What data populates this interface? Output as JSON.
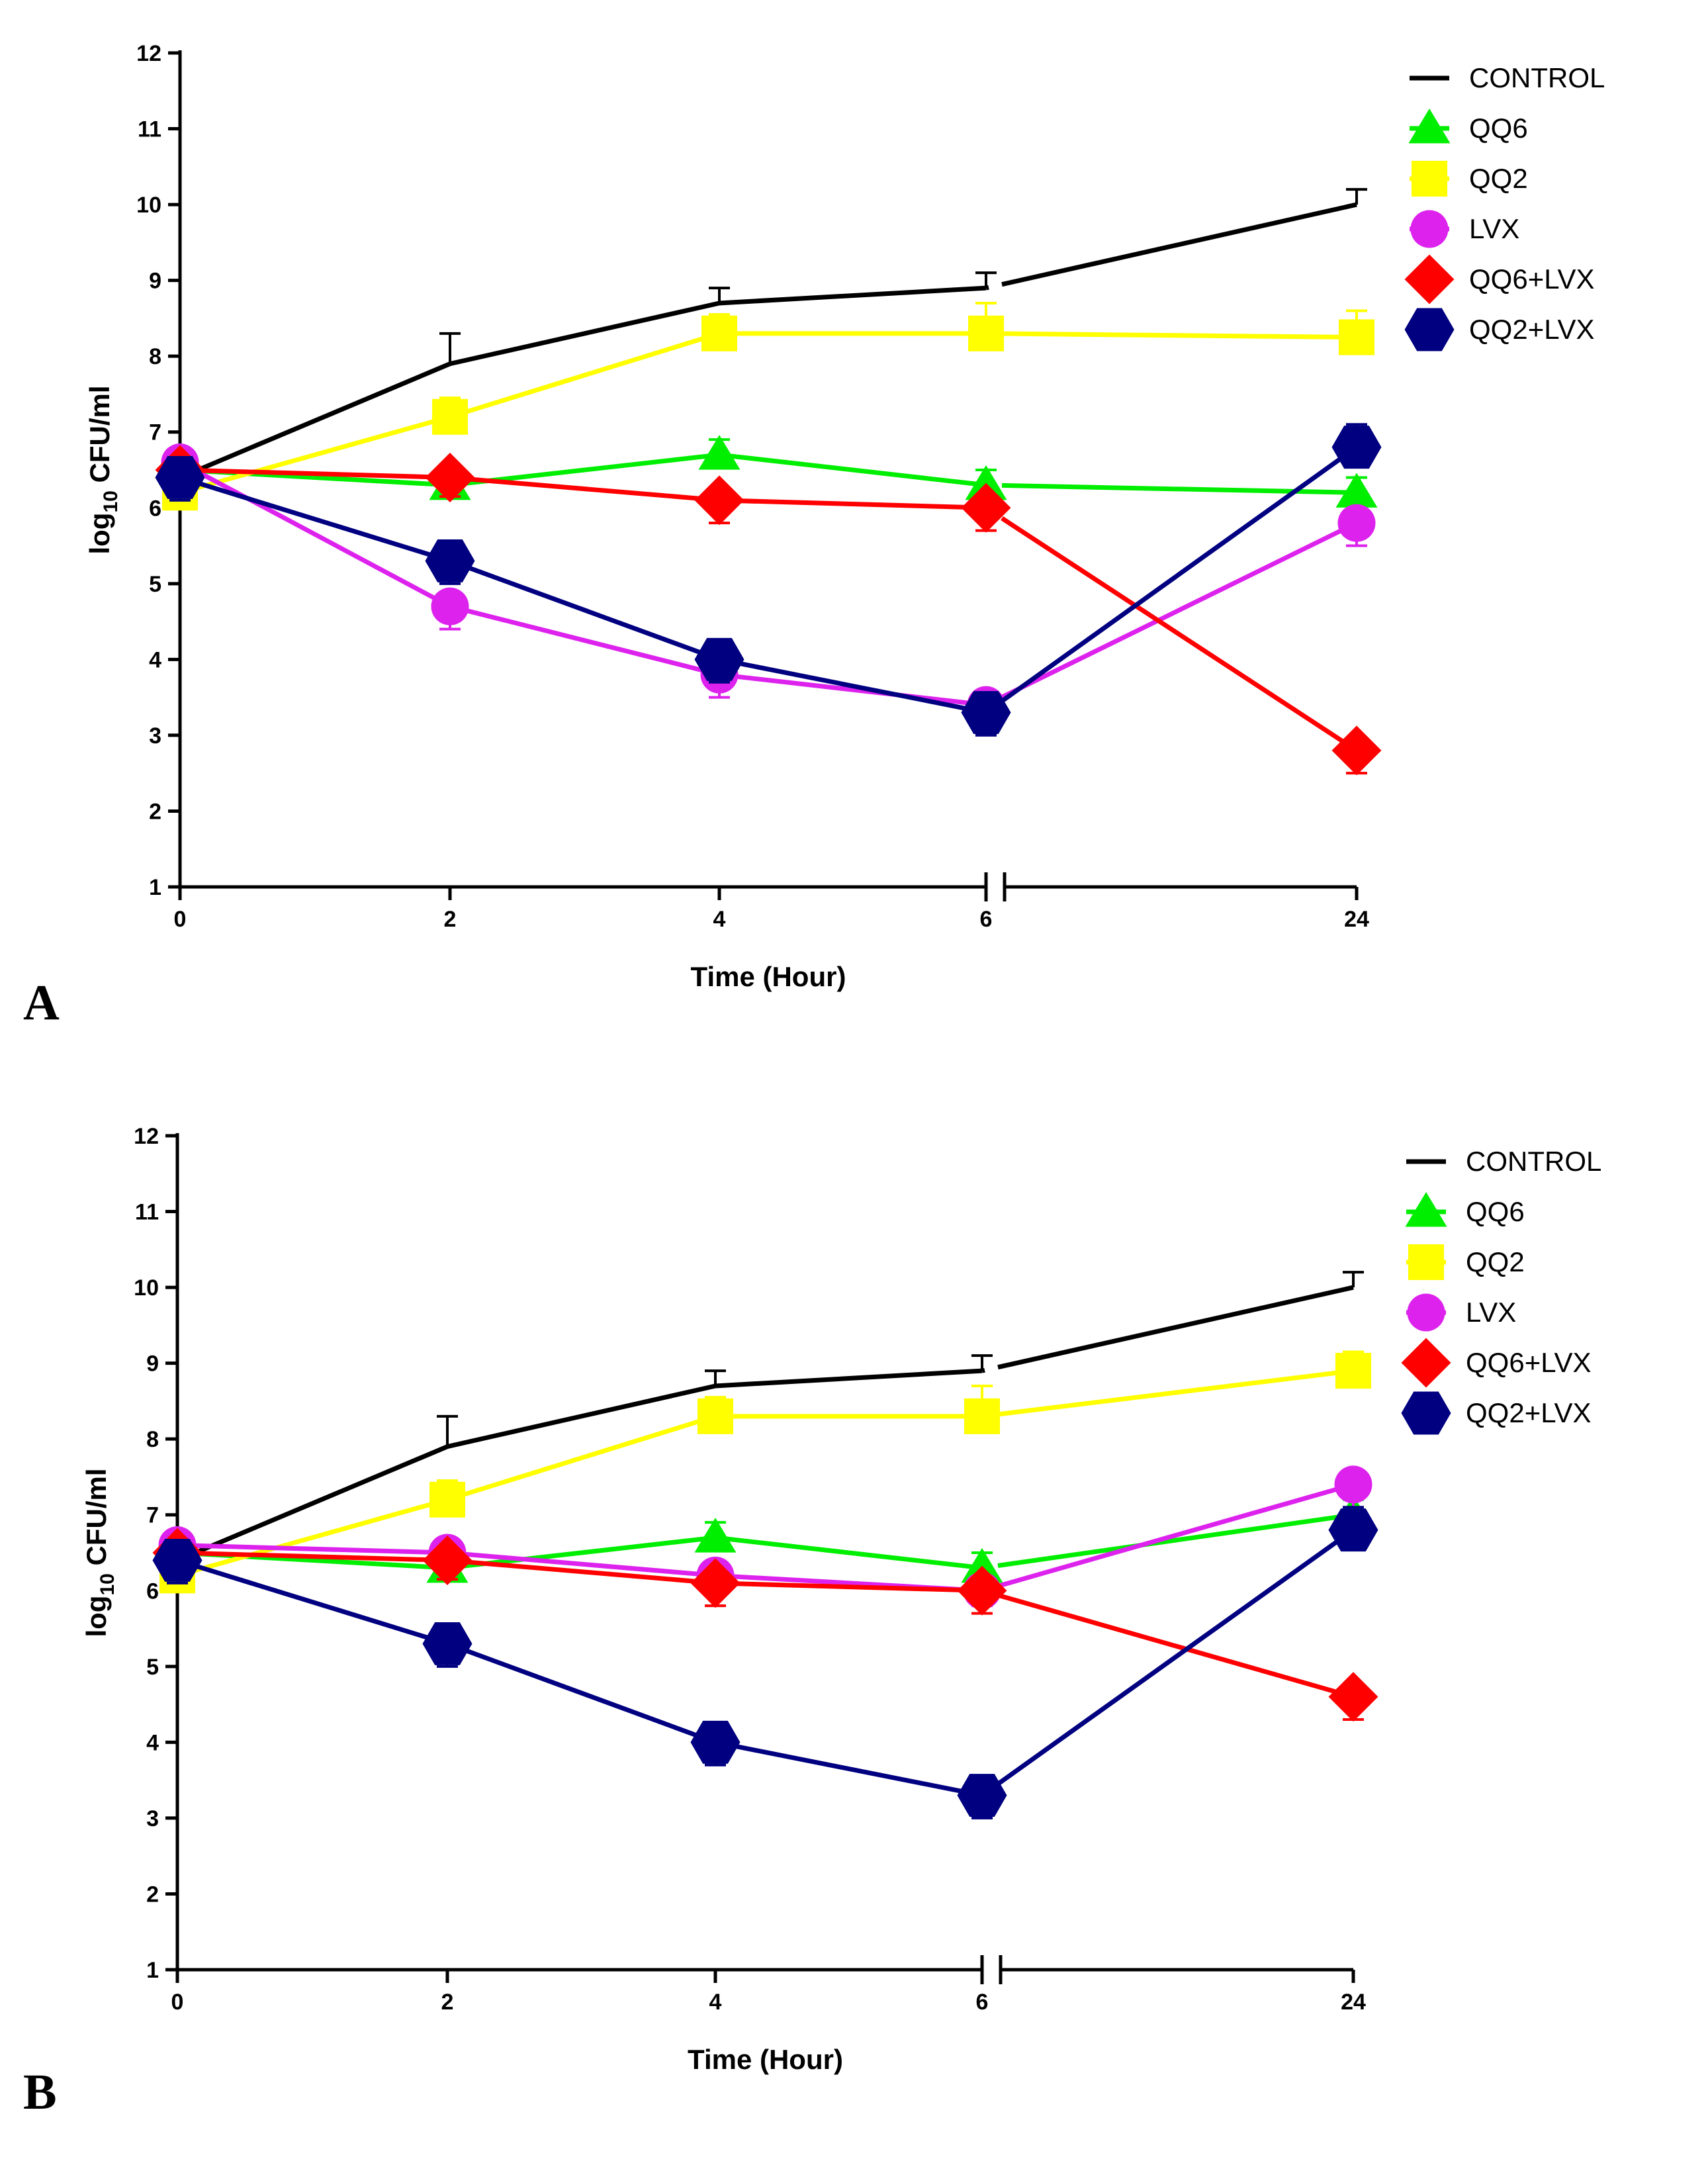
{
  "chart_data": [
    {
      "type": "line",
      "panel_label": "A",
      "xlabel": "Time (Hour)",
      "ylabel": "log10 CFU/ml",
      "ylabel_parts": [
        "log",
        "10",
        " CFU/ml"
      ],
      "x": [
        "0",
        "2",
        "4",
        "6",
        "24"
      ],
      "yticks": [
        "1",
        "2",
        "3",
        "4",
        "5",
        "6",
        "7",
        "8",
        "9",
        "10",
        "11",
        "12"
      ],
      "ylim": [
        1,
        12
      ],
      "axis_break_after": "6",
      "legend_position": "top-right",
      "series": [
        {
          "name": "CONTROL",
          "color": "#000000",
          "marker": "none",
          "values": [
            6.4,
            7.9,
            8.7,
            8.9,
            10.0
          ],
          "errors": [
            0.2,
            0.4,
            0.2,
            0.2,
            0.2
          ]
        },
        {
          "name": "QQ6",
          "color": "#00ee00",
          "marker": "triangle",
          "values": [
            6.5,
            6.3,
            6.7,
            6.3,
            6.2
          ],
          "errors": [
            0.2,
            0.2,
            0.2,
            0.2,
            0.2
          ]
        },
        {
          "name": "QQ2",
          "color": "#ffff00",
          "marker": "square",
          "values": [
            6.2,
            7.2,
            8.3,
            8.3,
            8.25
          ],
          "errors": [
            0.2,
            0.25,
            0.25,
            0.4,
            0.35
          ]
        },
        {
          "name": "LVX",
          "color": "#dd22ee",
          "marker": "circle",
          "values": [
            6.6,
            4.7,
            3.8,
            3.4,
            5.8
          ],
          "errors": [
            0.2,
            0.3,
            0.3,
            0.2,
            0.3
          ]
        },
        {
          "name": "QQ6+LVX",
          "color": "#ff0000",
          "marker": "diamond",
          "values": [
            6.5,
            6.4,
            6.1,
            6.0,
            2.8
          ],
          "errors": [
            0.2,
            0.25,
            0.3,
            0.3,
            0.3
          ]
        },
        {
          "name": "QQ2+LVX",
          "color": "#000080",
          "marker": "hexagon",
          "values": [
            6.4,
            5.3,
            4.0,
            3.3,
            6.8
          ],
          "errors": [
            0.3,
            0.3,
            0.3,
            0.3,
            0.3
          ]
        }
      ]
    },
    {
      "type": "line",
      "panel_label": "B",
      "xlabel": "Time (Hour)",
      "ylabel": "log10 CFU/ml",
      "ylabel_parts": [
        "log",
        "10",
        " CFU/ml"
      ],
      "x": [
        "0",
        "2",
        "4",
        "6",
        "24"
      ],
      "yticks": [
        "1",
        "2",
        "3",
        "4",
        "5",
        "6",
        "7",
        "8",
        "9",
        "10",
        "11",
        "12"
      ],
      "ylim": [
        1,
        12
      ],
      "axis_break_after": "6",
      "legend_position": "top-right",
      "series": [
        {
          "name": "CONTROL",
          "color": "#000000",
          "marker": "none",
          "values": [
            6.4,
            7.9,
            8.7,
            8.9,
            10.0
          ],
          "errors": [
            0.2,
            0.4,
            0.2,
            0.2,
            0.2
          ]
        },
        {
          "name": "QQ6",
          "color": "#00ee00",
          "marker": "triangle",
          "values": [
            6.5,
            6.3,
            6.7,
            6.3,
            7.0
          ],
          "errors": [
            0.2,
            0.2,
            0.2,
            0.2,
            0.2
          ]
        },
        {
          "name": "QQ2",
          "color": "#ffff00",
          "marker": "square",
          "values": [
            6.2,
            7.2,
            8.3,
            8.3,
            8.9
          ],
          "errors": [
            0.2,
            0.25,
            0.25,
            0.4,
            0.25
          ]
        },
        {
          "name": "LVX",
          "color": "#dd22ee",
          "marker": "circle",
          "values": [
            6.6,
            6.5,
            6.2,
            6.0,
            7.4
          ],
          "errors": [
            0.25,
            0.25,
            0.25,
            0.2,
            0.55
          ]
        },
        {
          "name": "QQ6+LVX",
          "color": "#ff0000",
          "marker": "diamond",
          "values": [
            6.5,
            6.4,
            6.1,
            6.0,
            4.6
          ],
          "errors": [
            0.2,
            0.25,
            0.3,
            0.3,
            0.3
          ]
        },
        {
          "name": "QQ2+LVX",
          "color": "#000080",
          "marker": "hexagon",
          "values": [
            6.4,
            5.3,
            4.0,
            3.3,
            6.8
          ],
          "errors": [
            0.3,
            0.3,
            0.3,
            0.3,
            0.3
          ]
        }
      ]
    }
  ]
}
